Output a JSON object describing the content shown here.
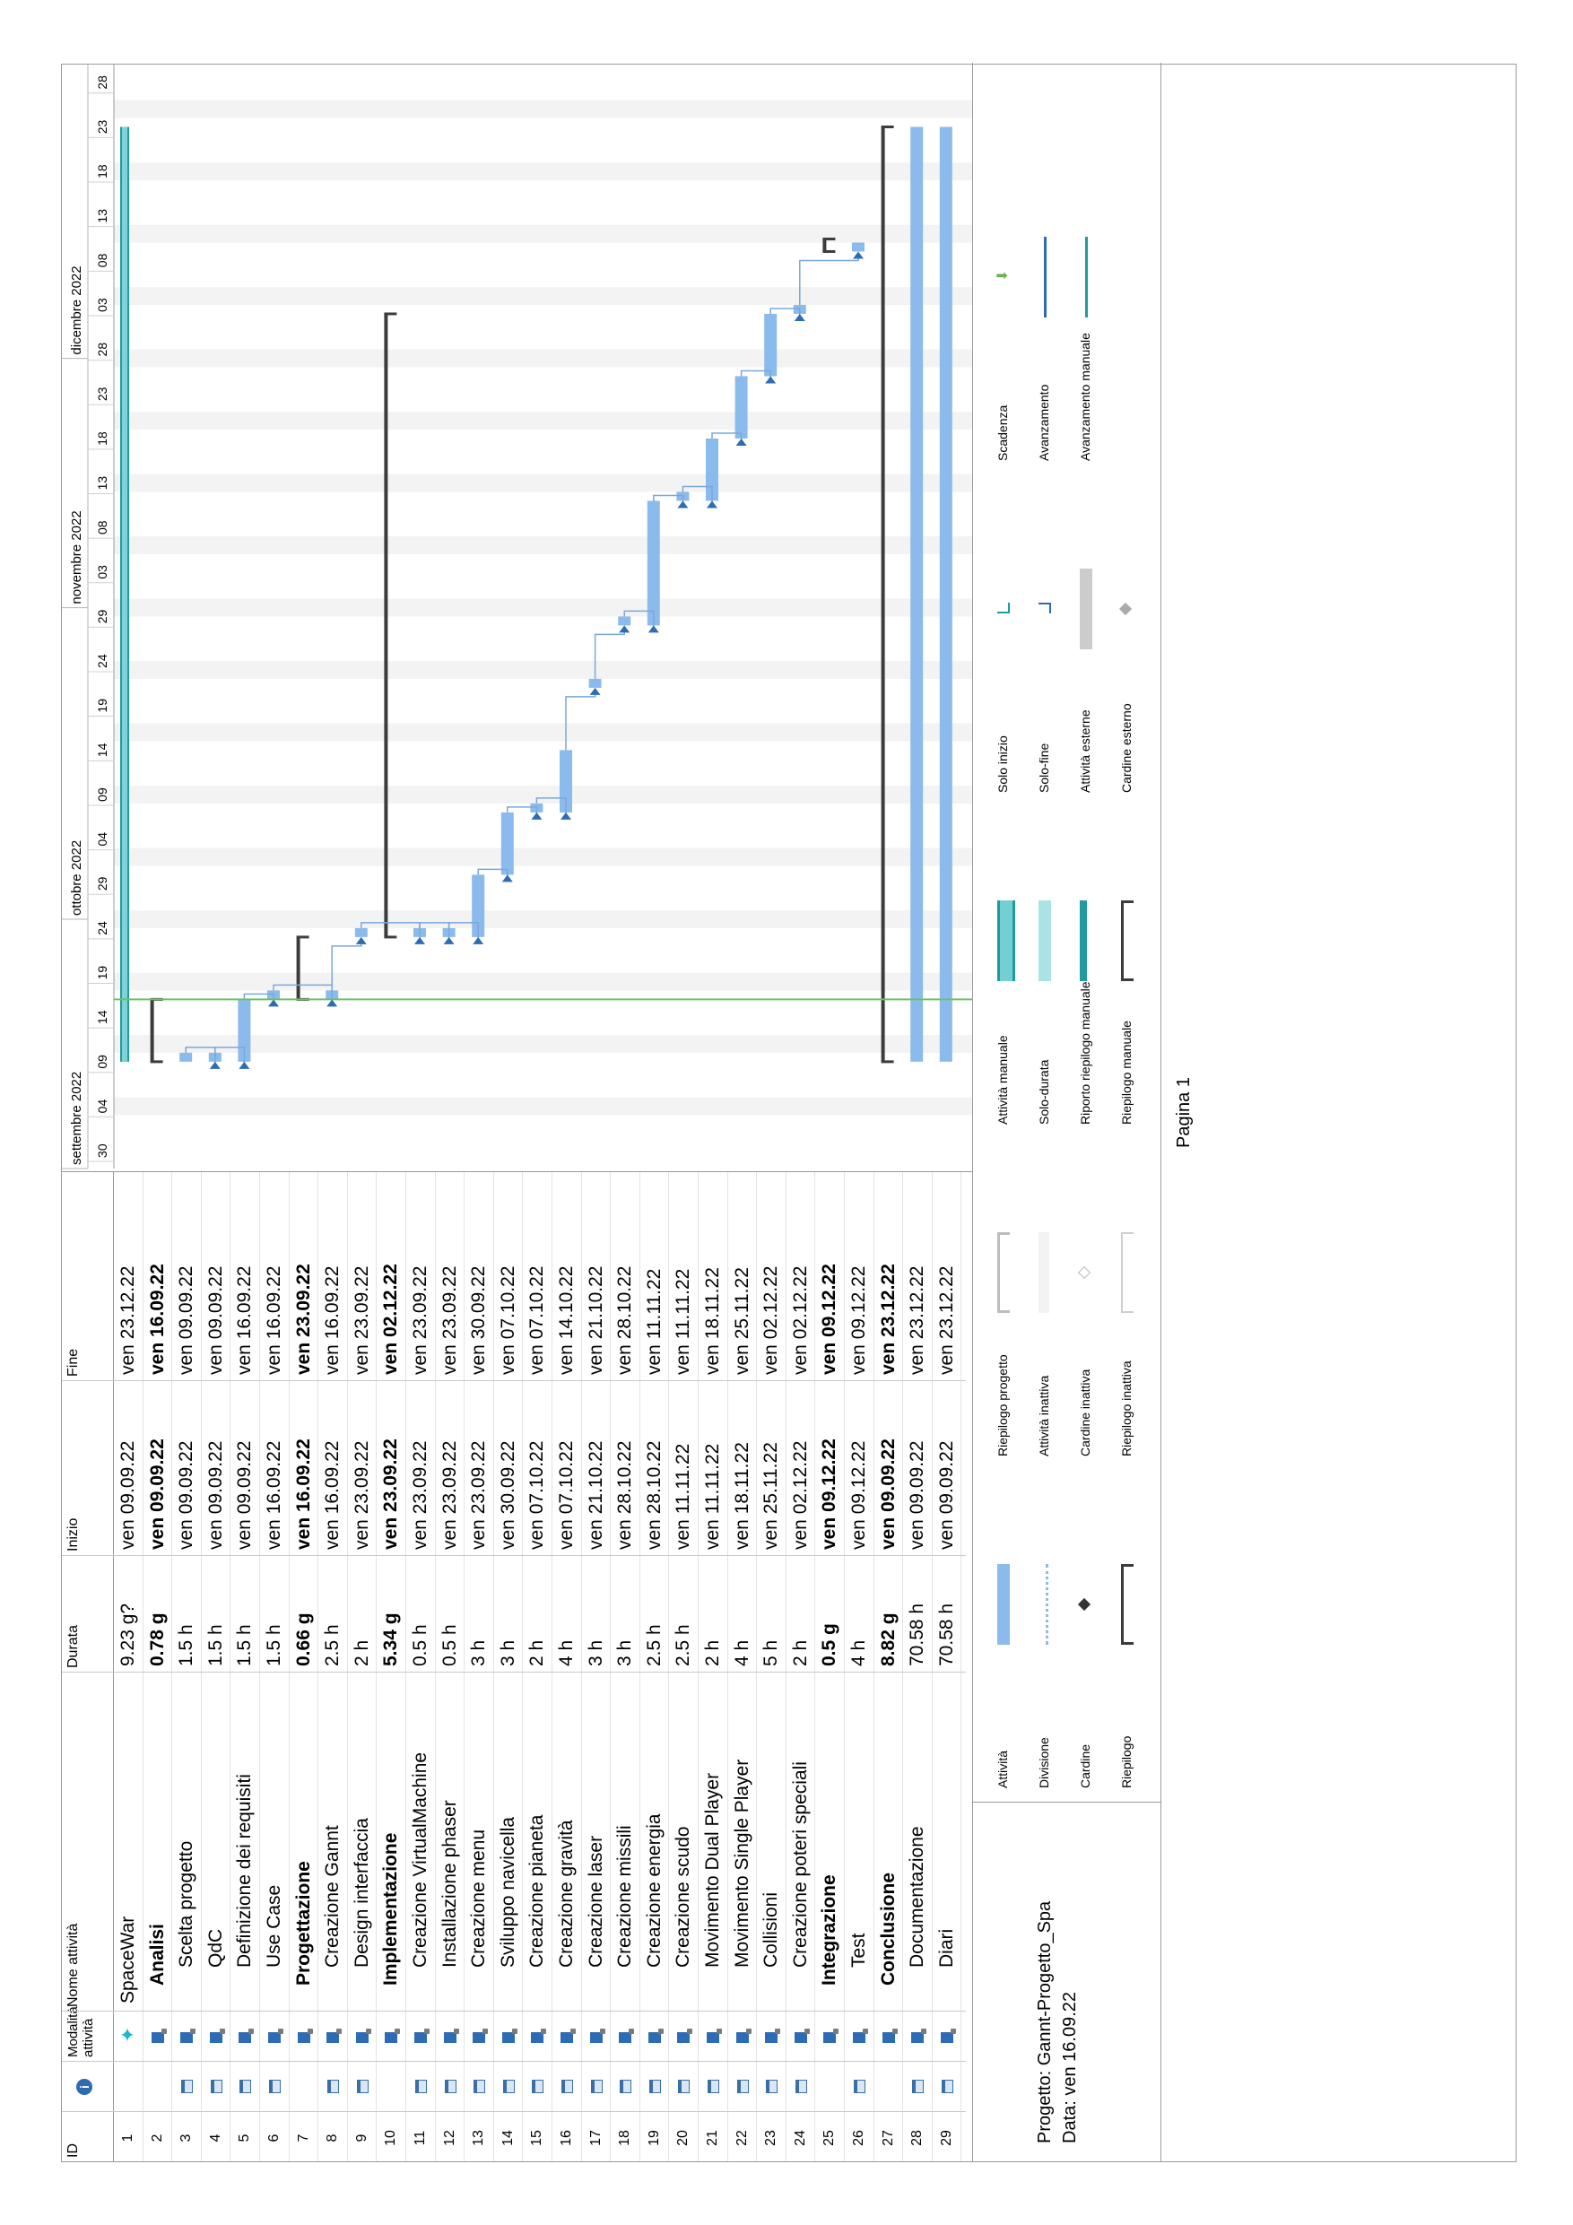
{
  "header": {
    "id": "ID",
    "info_icon": "info-icon",
    "mode": "Modalità attività",
    "name": "Nome attività",
    "duration": "Durata",
    "start": "Inizio",
    "finish": "Fine"
  },
  "timescale": {
    "months": [
      {
        "label": "settembre 2022",
        "date": "2022-08-28"
      },
      {
        "label": "ottobre 2022",
        "date": "2022-09-25"
      },
      {
        "label": "novembre 2022",
        "date": "2022-10-30"
      },
      {
        "label": "dicembre 2022",
        "date": "2022-11-27"
      }
    ],
    "ticks": [
      "30",
      "04",
      "09",
      "14",
      "19",
      "24",
      "29",
      "04",
      "09",
      "14",
      "19",
      "24",
      "29",
      "03",
      "08",
      "13",
      "18",
      "23",
      "28",
      "03",
      "08",
      "13",
      "18",
      "23",
      "28"
    ]
  },
  "tasks": [
    {
      "id": "1",
      "cal": false,
      "mode": "pin",
      "name": "SpaceWar",
      "indent": 0,
      "bold": false,
      "duration": "9.23 g?",
      "start": "ven 09.09.22",
      "finish": "ven 23.12.22"
    },
    {
      "id": "2",
      "cal": false,
      "mode": "auto",
      "name": "Analisi",
      "indent": 1,
      "bold": true,
      "duration": "0.78 g",
      "start": "ven 09.09.22",
      "finish": "ven 16.09.22"
    },
    {
      "id": "3",
      "cal": true,
      "mode": "auto",
      "name": "Scelta progetto",
      "indent": 2,
      "bold": false,
      "duration": "1.5 h",
      "start": "ven 09.09.22",
      "finish": "ven 09.09.22"
    },
    {
      "id": "4",
      "cal": true,
      "mode": "auto",
      "name": "QdC",
      "indent": 2,
      "bold": false,
      "duration": "1.5 h",
      "start": "ven 09.09.22",
      "finish": "ven 09.09.22"
    },
    {
      "id": "5",
      "cal": true,
      "mode": "auto",
      "name": "Definizione dei requisiti",
      "indent": 2,
      "bold": false,
      "duration": "1.5 h",
      "start": "ven 09.09.22",
      "finish": "ven 16.09.22"
    },
    {
      "id": "6",
      "cal": true,
      "mode": "auto",
      "name": "Use Case",
      "indent": 2,
      "bold": false,
      "duration": "1.5 h",
      "start": "ven 16.09.22",
      "finish": "ven 16.09.22"
    },
    {
      "id": "7",
      "cal": false,
      "mode": "auto",
      "name": "Progettazione",
      "indent": 1,
      "bold": true,
      "duration": "0.66 g",
      "start": "ven 16.09.22",
      "finish": "ven 23.09.22"
    },
    {
      "id": "8",
      "cal": true,
      "mode": "auto",
      "name": "Creazione Gannt",
      "indent": 2,
      "bold": false,
      "duration": "2.5 h",
      "start": "ven 16.09.22",
      "finish": "ven 16.09.22"
    },
    {
      "id": "9",
      "cal": true,
      "mode": "auto",
      "name": "Design interfaccia",
      "indent": 2,
      "bold": false,
      "duration": "2 h",
      "start": "ven 23.09.22",
      "finish": "ven 23.09.22"
    },
    {
      "id": "10",
      "cal": false,
      "mode": "auto",
      "name": "Implementazione",
      "indent": 1,
      "bold": true,
      "duration": "5.34 g",
      "start": "ven 23.09.22",
      "finish": "ven 02.12.22"
    },
    {
      "id": "11",
      "cal": true,
      "mode": "auto",
      "name": "Creazione VirtualMachine",
      "indent": 2,
      "bold": false,
      "duration": "0.5 h",
      "start": "ven 23.09.22",
      "finish": "ven 23.09.22"
    },
    {
      "id": "12",
      "cal": true,
      "mode": "auto",
      "name": "Installazione phaser",
      "indent": 2,
      "bold": false,
      "duration": "0.5 h",
      "start": "ven 23.09.22",
      "finish": "ven 23.09.22"
    },
    {
      "id": "13",
      "cal": true,
      "mode": "auto",
      "name": "Creazione menu",
      "indent": 2,
      "bold": false,
      "duration": "3 h",
      "start": "ven 23.09.22",
      "finish": "ven 30.09.22"
    },
    {
      "id": "14",
      "cal": true,
      "mode": "auto",
      "name": "Sviluppo navicella",
      "indent": 2,
      "bold": false,
      "duration": "3 h",
      "start": "ven 30.09.22",
      "finish": "ven 07.10.22"
    },
    {
      "id": "15",
      "cal": true,
      "mode": "auto",
      "name": "Creazione pianeta",
      "indent": 2,
      "bold": false,
      "duration": "2 h",
      "start": "ven 07.10.22",
      "finish": "ven 07.10.22"
    },
    {
      "id": "16",
      "cal": true,
      "mode": "auto",
      "name": "Creazione gravità",
      "indent": 2,
      "bold": false,
      "duration": "4 h",
      "start": "ven 07.10.22",
      "finish": "ven 14.10.22"
    },
    {
      "id": "17",
      "cal": true,
      "mode": "auto",
      "name": "Creazione laser",
      "indent": 2,
      "bold": false,
      "duration": "3 h",
      "start": "ven 21.10.22",
      "finish": "ven 21.10.22"
    },
    {
      "id": "18",
      "cal": true,
      "mode": "auto",
      "name": "Creazione missili",
      "indent": 2,
      "bold": false,
      "duration": "3 h",
      "start": "ven 28.10.22",
      "finish": "ven 28.10.22"
    },
    {
      "id": "19",
      "cal": true,
      "mode": "auto",
      "name": "Creazione energia",
      "indent": 2,
      "bold": false,
      "duration": "2.5 h",
      "start": "ven 28.10.22",
      "finish": "ven 11.11.22"
    },
    {
      "id": "20",
      "cal": true,
      "mode": "auto",
      "name": "Creazione scudo",
      "indent": 2,
      "bold": false,
      "duration": "2.5 h",
      "start": "ven 11.11.22",
      "finish": "ven 11.11.22"
    },
    {
      "id": "21",
      "cal": true,
      "mode": "auto",
      "name": "Movimento Dual Player",
      "indent": 2,
      "bold": false,
      "duration": "2 h",
      "start": "ven 11.11.22",
      "finish": "ven 18.11.22"
    },
    {
      "id": "22",
      "cal": true,
      "mode": "auto",
      "name": "Movimento Single Player",
      "indent": 2,
      "bold": false,
      "duration": "4 h",
      "start": "ven 18.11.22",
      "finish": "ven 25.11.22"
    },
    {
      "id": "23",
      "cal": true,
      "mode": "auto",
      "name": "Collisioni",
      "indent": 2,
      "bold": false,
      "duration": "5 h",
      "start": "ven 25.11.22",
      "finish": "ven 02.12.22"
    },
    {
      "id": "24",
      "cal": true,
      "mode": "auto",
      "name": "Creazione poteri speciali",
      "indent": 2,
      "bold": false,
      "duration": "2 h",
      "start": "ven 02.12.22",
      "finish": "ven 02.12.22"
    },
    {
      "id": "25",
      "cal": false,
      "mode": "auto",
      "name": "Integrazione",
      "indent": 1,
      "bold": true,
      "duration": "0.5 g",
      "start": "ven 09.12.22",
      "finish": "ven 09.12.22"
    },
    {
      "id": "26",
      "cal": true,
      "mode": "auto",
      "name": "Test",
      "indent": 2,
      "bold": false,
      "duration": "4 h",
      "start": "ven 09.12.22",
      "finish": "ven 09.12.22"
    },
    {
      "id": "27",
      "cal": false,
      "mode": "auto",
      "name": "Conclusione",
      "indent": 1,
      "bold": true,
      "duration": "8.82 g",
      "start": "ven 09.09.22",
      "finish": "ven 23.12.22"
    },
    {
      "id": "28",
      "cal": true,
      "mode": "auto",
      "name": "Documentazione",
      "indent": 2,
      "bold": false,
      "duration": "70.58 h",
      "start": "ven 09.09.22",
      "finish": "ven 23.12.22"
    },
    {
      "id": "29",
      "cal": true,
      "mode": "auto",
      "name": "Diari",
      "indent": 2,
      "bold": false,
      "duration": "70.58 h",
      "start": "ven 09.09.22",
      "finish": "ven 23.12.22"
    }
  ],
  "chart_data": {
    "type": "gantt",
    "title": "",
    "status_date": "2022-09-16",
    "x_range": [
      "2022-08-28",
      "2022-12-30"
    ],
    "items": [
      {
        "row": 1,
        "kind": "project",
        "start": "2022-09-09",
        "end": "2022-12-23"
      },
      {
        "row": 2,
        "kind": "summary",
        "start": "2022-09-09",
        "end": "2022-09-16"
      },
      {
        "row": 3,
        "kind": "task",
        "start": "2022-09-09",
        "end": "2022-09-09"
      },
      {
        "row": 4,
        "kind": "task",
        "start": "2022-09-09",
        "end": "2022-09-09"
      },
      {
        "row": 5,
        "kind": "task",
        "start": "2022-09-09",
        "end": "2022-09-16"
      },
      {
        "row": 6,
        "kind": "task",
        "start": "2022-09-16",
        "end": "2022-09-16"
      },
      {
        "row": 7,
        "kind": "summary",
        "start": "2022-09-16",
        "end": "2022-09-23"
      },
      {
        "row": 8,
        "kind": "task",
        "start": "2022-09-16",
        "end": "2022-09-16"
      },
      {
        "row": 9,
        "kind": "task",
        "start": "2022-09-23",
        "end": "2022-09-23"
      },
      {
        "row": 10,
        "kind": "summary",
        "start": "2022-09-23",
        "end": "2022-12-02"
      },
      {
        "row": 11,
        "kind": "task",
        "start": "2022-09-23",
        "end": "2022-09-23"
      },
      {
        "row": 12,
        "kind": "task",
        "start": "2022-09-23",
        "end": "2022-09-23"
      },
      {
        "row": 13,
        "kind": "task",
        "start": "2022-09-23",
        "end": "2022-09-30"
      },
      {
        "row": 14,
        "kind": "task",
        "start": "2022-09-30",
        "end": "2022-10-07"
      },
      {
        "row": 15,
        "kind": "task",
        "start": "2022-10-07",
        "end": "2022-10-07"
      },
      {
        "row": 16,
        "kind": "task",
        "start": "2022-10-07",
        "end": "2022-10-14"
      },
      {
        "row": 17,
        "kind": "task",
        "start": "2022-10-21",
        "end": "2022-10-21"
      },
      {
        "row": 18,
        "kind": "task",
        "start": "2022-10-28",
        "end": "2022-10-28"
      },
      {
        "row": 19,
        "kind": "task",
        "start": "2022-10-28",
        "end": "2022-11-11"
      },
      {
        "row": 20,
        "kind": "task",
        "start": "2022-11-11",
        "end": "2022-11-11"
      },
      {
        "row": 21,
        "kind": "task",
        "start": "2022-11-11",
        "end": "2022-11-18"
      },
      {
        "row": 22,
        "kind": "task",
        "start": "2022-11-18",
        "end": "2022-11-25"
      },
      {
        "row": 23,
        "kind": "task",
        "start": "2022-11-25",
        "end": "2022-12-02"
      },
      {
        "row": 24,
        "kind": "task",
        "start": "2022-12-02",
        "end": "2022-12-02"
      },
      {
        "row": 25,
        "kind": "summary",
        "start": "2022-12-09",
        "end": "2022-12-09"
      },
      {
        "row": 26,
        "kind": "task",
        "start": "2022-12-09",
        "end": "2022-12-09"
      },
      {
        "row": 27,
        "kind": "summary",
        "start": "2022-09-09",
        "end": "2022-12-23"
      },
      {
        "row": 28,
        "kind": "task",
        "start": "2022-09-09",
        "end": "2022-12-23"
      },
      {
        "row": 29,
        "kind": "task",
        "start": "2022-09-09",
        "end": "2022-12-23"
      }
    ]
  },
  "footer": {
    "project": "Progetto: Gannt-Progetto_Spa",
    "date": "Data: ven 16.09.22",
    "page": "Pagina 1"
  },
  "legend": {
    "col1": [
      "Attività",
      "Divisione",
      "Cardine",
      "Riepilogo"
    ],
    "col2": [
      "Riepilogo progetto",
      "Attività inattiva",
      "Cardine inattiva",
      "Riepilogo inattiva"
    ],
    "col3": [
      "Attività manuale",
      "Solo-durata",
      "Riporto riepilogo manuale",
      "Riepilogo manuale"
    ],
    "col4": [
      "Solo inizio",
      "Solo-fine",
      "Attività esterne",
      "Cardine esterno"
    ],
    "col5": [
      "Scadenza",
      "Avanzamento",
      "Avanzamento manuale"
    ]
  },
  "colors": {
    "bar": "#8bbbec",
    "bar_dark": "#5b8fcd",
    "summary": "#3c3c3c",
    "progress": "#1f9aa0",
    "status_line": "#6cc06c",
    "shade": "#f3f3f3",
    "arrow": "#2d6cb3"
  }
}
